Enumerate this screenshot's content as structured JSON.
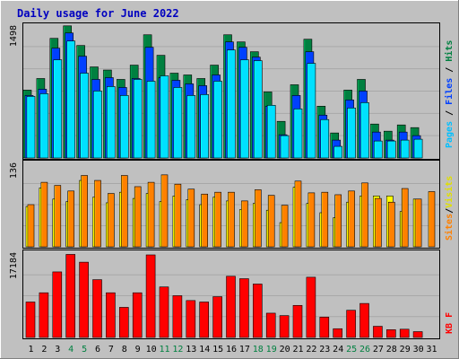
{
  "title": "Daily usage for June 2022",
  "colors": {
    "background": "#c0c0c0",
    "title": "#0000c0",
    "hits": "#008040",
    "files": "#0040ff",
    "pages": "#00e0ff",
    "visits": "#ffff00",
    "sites": "#ff8000",
    "kbytes": "#ff0000",
    "weekend_label": "#008040"
  },
  "chart_data": [
    {
      "type": "bar",
      "title": "Daily usage for June 2022",
      "categories": [
        "1",
        "2",
        "3",
        "4",
        "5",
        "6",
        "7",
        "8",
        "9",
        "10",
        "11",
        "12",
        "13",
        "14",
        "15",
        "16",
        "17",
        "18",
        "19",
        "20",
        "21",
        "22",
        "23",
        "24",
        "25",
        "26",
        "27",
        "28",
        "29",
        "30",
        "31"
      ],
      "weekend_days": [
        "4",
        "5",
        "11",
        "12",
        "18",
        "19",
        "25",
        "26"
      ],
      "ymax_label": "1498",
      "ylim": [
        0,
        1498
      ],
      "right_labels": [
        "Pages",
        "Files",
        "Hits"
      ],
      "series": [
        {
          "name": "Hits",
          "values": [
            760,
            890,
            1340,
            1480,
            1260,
            1020,
            985,
            880,
            1040,
            1380,
            1150,
            950,
            930,
            890,
            1040,
            1380,
            1300,
            1190,
            740,
            410,
            820,
            1330,
            580,
            280,
            760,
            880,
            380,
            300,
            370,
            340,
            0
          ]
        },
        {
          "name": "Files",
          "values": [
            700,
            770,
            1230,
            1400,
            1140,
            880,
            900,
            790,
            890,
            1240,
            900,
            870,
            830,
            810,
            930,
            1300,
            1240,
            1130,
            580,
            260,
            700,
            1190,
            480,
            200,
            650,
            750,
            290,
            200,
            290,
            250,
            0
          ]
        },
        {
          "name": "Pages",
          "values": [
            690,
            720,
            1100,
            1310,
            950,
            750,
            800,
            700,
            880,
            860,
            920,
            790,
            700,
            710,
            860,
            1210,
            1100,
            1090,
            590,
            250,
            550,
            1060,
            430,
            130,
            560,
            620,
            190,
            190,
            200,
            210,
            0
          ]
        }
      ]
    },
    {
      "type": "bar",
      "ymax_label": "136",
      "ylim": [
        0,
        136
      ],
      "right_labels": [
        "Sites",
        "/",
        "Visits"
      ],
      "series": [
        {
          "name": "Visits",
          "values": [
            65,
            95,
            77,
            73,
            107,
            80,
            71,
            88,
            78,
            86,
            73,
            82,
            76,
            68,
            80,
            74,
            60,
            70,
            59,
            39,
            96,
            70,
            55,
            47,
            72,
            82,
            82,
            82,
            57,
            77,
            0
          ]
        },
        {
          "name": "Sites",
          "values": [
            68,
            104,
            99,
            90,
            115,
            107,
            86,
            115,
            97,
            104,
            116,
            101,
            93,
            85,
            88,
            88,
            74,
            92,
            83,
            67,
            106,
            87,
            88,
            84,
            90,
            103,
            78,
            72,
            94,
            77,
            89
          ]
        }
      ]
    },
    {
      "type": "bar",
      "ymax_label": "17184",
      "ylim": [
        0,
        17184
      ],
      "right_labels": [
        "KB",
        "F"
      ],
      "series": [
        {
          "name": "KBytes",
          "values": [
            7300,
            9200,
            13500,
            17100,
            15500,
            11900,
            9200,
            6200,
            9200,
            17000,
            10400,
            8600,
            7600,
            7300,
            8400,
            12600,
            12100,
            11000,
            5000,
            4500,
            6600,
            12400,
            4200,
            1800,
            5600,
            7000,
            2300,
            1600,
            1700,
            1200,
            0
          ]
        }
      ]
    }
  ]
}
